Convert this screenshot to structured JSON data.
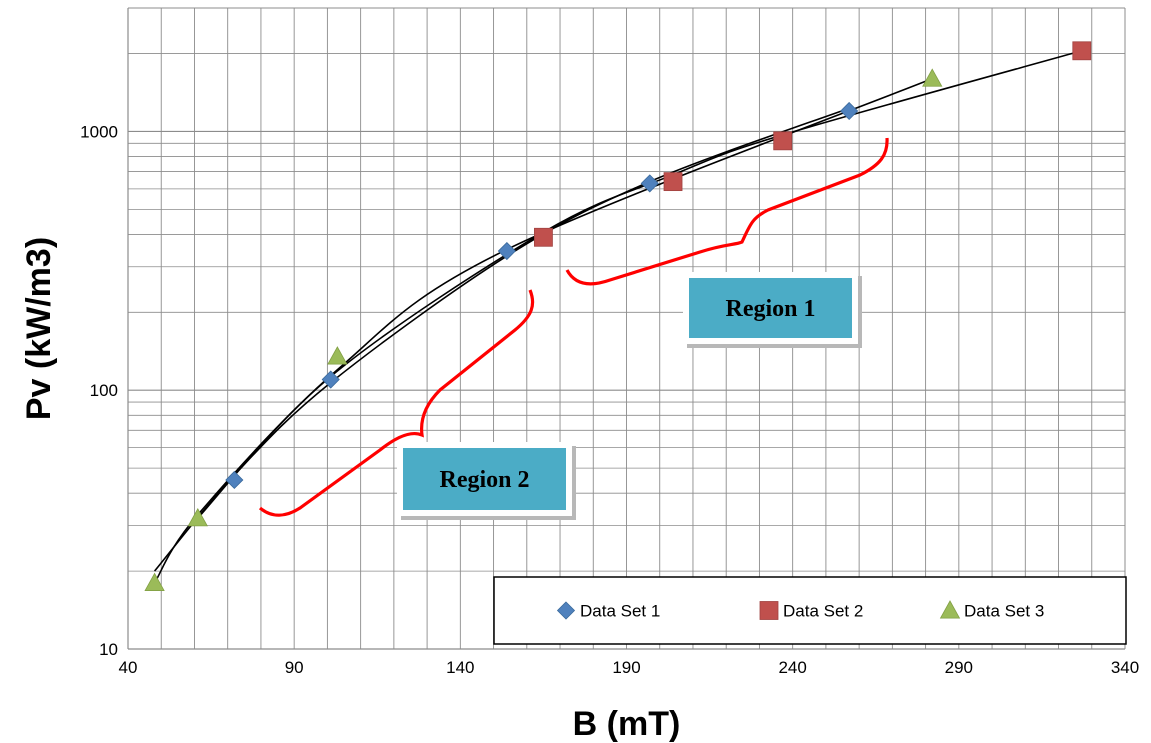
{
  "chart_data": {
    "type": "scatter",
    "xlabel": "B (mT)",
    "ylabel": "Pv (kW/m3)",
    "xlim": [
      40,
      340
    ],
    "ylim": [
      10,
      3000
    ],
    "y_scale": "log",
    "grid": true,
    "x_ticks": [
      40,
      90,
      140,
      190,
      240,
      290,
      340
    ],
    "x_tick_labels": [
      "40",
      "90",
      "140",
      "190",
      "240",
      "290",
      "340"
    ],
    "y_ticks": [
      10,
      100,
      1000
    ],
    "y_tick_labels": [
      "10",
      "100",
      "1000"
    ],
    "legend_position": "bottom-right",
    "series": [
      {
        "name": "Data Set 1",
        "marker": "diamond",
        "color": "#4f81bd",
        "x": [
          72,
          101,
          154,
          197,
          257
        ],
        "y": [
          45,
          110,
          345,
          630,
          1200
        ]
      },
      {
        "name": "Data Set 2",
        "marker": "square",
        "color": "#c0504d",
        "x": [
          165,
          204,
          237,
          327
        ],
        "y": [
          390,
          640,
          920,
          2050
        ]
      },
      {
        "name": "Data Set 3",
        "marker": "triangle",
        "color": "#9bbb59",
        "x": [
          48,
          61,
          103,
          282
        ],
        "y": [
          18,
          32,
          135,
          1600
        ]
      }
    ],
    "trendlines": [
      {
        "type": "power",
        "color": "#000000",
        "series": "Data Set 1",
        "x_range": [
          48,
          257
        ],
        "points": [
          [
            48,
            20
          ],
          [
            72,
            47
          ],
          [
            101,
            107
          ],
          [
            154,
            330
          ],
          [
            197,
            640
          ],
          [
            257,
            1230
          ]
        ]
      },
      {
        "type": "power",
        "color": "#000000",
        "series": "Data Set 2",
        "x_range": [
          60,
          327
        ],
        "points": [
          [
            60,
            31
          ],
          [
            101,
            113
          ],
          [
            165,
            408
          ],
          [
            204,
            680
          ],
          [
            237,
            970
          ],
          [
            327,
            2050
          ]
        ]
      },
      {
        "type": "power",
        "color": "#000000",
        "series": "Data Set 3",
        "x_range": [
          48,
          282
        ],
        "points": [
          [
            48,
            18
          ],
          [
            61,
            33
          ],
          [
            103,
            120
          ],
          [
            154,
            350
          ],
          [
            282,
            1600
          ]
        ]
      }
    ],
    "annotations": [
      {
        "label": "Region 1"
      },
      {
        "label": "Region 2"
      }
    ],
    "annotation_color": "#4bacc6",
    "bracket_color": "#ff0000"
  }
}
